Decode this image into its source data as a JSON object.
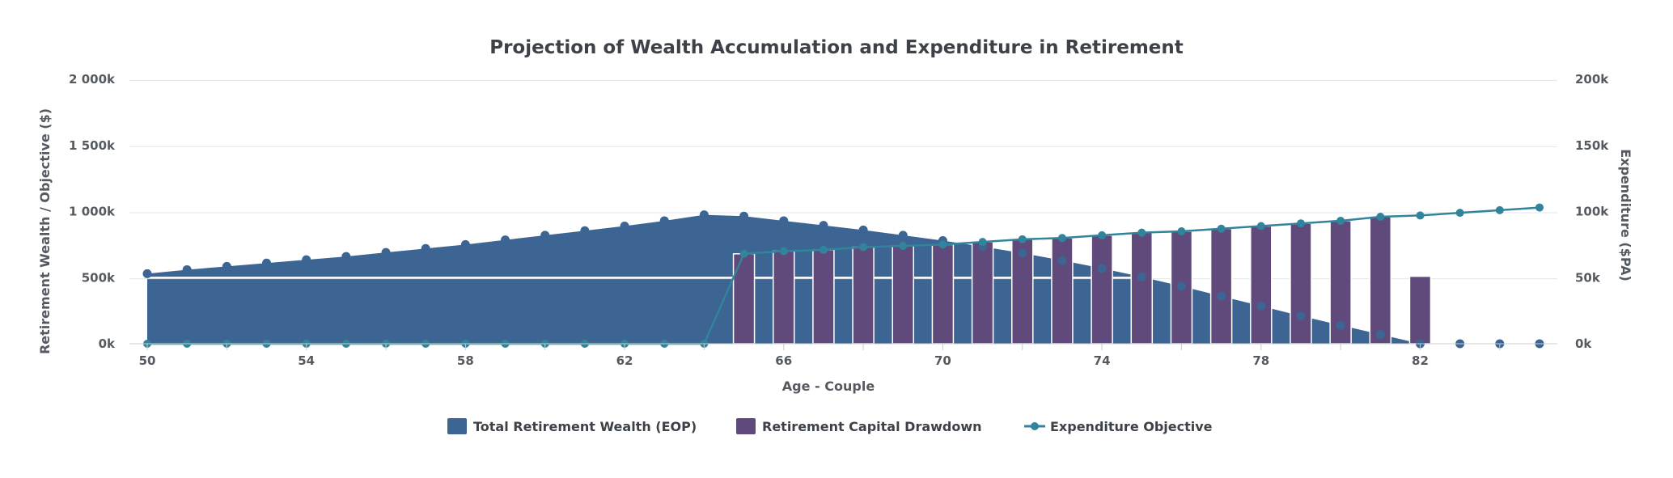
{
  "chart_data": {
    "type": "combo",
    "title": "Projection of Wealth Accumulation and Expenditure in Retirement",
    "xlabel": "Age - Couple",
    "ylabel_left": "Retirement Wealth / Objective ($)",
    "ylabel_right": "Expenditure ($PA)",
    "x": [
      50,
      51,
      52,
      53,
      54,
      55,
      56,
      57,
      58,
      59,
      60,
      61,
      62,
      63,
      64,
      65,
      66,
      67,
      68,
      69,
      70,
      71,
      72,
      73,
      74,
      75,
      76,
      77,
      78,
      79,
      80,
      81,
      82,
      83,
      84,
      85
    ],
    "x_tick_labels": [
      "50",
      "54",
      "58",
      "62",
      "66",
      "70",
      "74",
      "78",
      "82"
    ],
    "y_left_ticks": [
      "0k",
      "500k",
      "1 000k",
      "1 500k",
      "2 000k"
    ],
    "y_right_ticks": [
      "0k",
      "50k",
      "100k",
      "150k",
      "200k"
    ],
    "ylim_left": [
      0,
      2000000
    ],
    "ylim_right": [
      0,
      200000
    ],
    "grid": true,
    "legend_position": "bottom-center",
    "series": [
      {
        "name": "Total Retirement Wealth (EOP)",
        "kind": "area",
        "axis": "left",
        "color": "#3c6594",
        "values": [
          530000,
          560000,
          585000,
          610000,
          635000,
          660000,
          690000,
          720000,
          750000,
          785000,
          820000,
          855000,
          890000,
          930000,
          975000,
          965000,
          930000,
          895000,
          860000,
          820000,
          780000,
          735000,
          685000,
          630000,
          570000,
          505000,
          435000,
          360000,
          285000,
          210000,
          140000,
          70000,
          0,
          0,
          0,
          0
        ]
      },
      {
        "name": "Retirement Capital Drawdown",
        "kind": "bar",
        "axis": "right",
        "color": "#604a7b",
        "values": [
          null,
          null,
          null,
          null,
          null,
          null,
          null,
          null,
          null,
          null,
          null,
          null,
          null,
          null,
          null,
          68000,
          70000,
          71000,
          73000,
          74000,
          75000,
          77000,
          79000,
          80000,
          82000,
          84000,
          85000,
          87000,
          89000,
          91000,
          93000,
          96000,
          51000,
          null,
          null,
          null
        ]
      },
      {
        "name": "Expenditure Objective",
        "kind": "line",
        "axis": "right",
        "color": "#31849b",
        "values": [
          0,
          0,
          0,
          0,
          0,
          0,
          0,
          0,
          0,
          0,
          0,
          0,
          0,
          0,
          0,
          68000,
          70000,
          71000,
          73000,
          74000,
          75000,
          77000,
          79000,
          80000,
          82000,
          84000,
          85000,
          87000,
          89000,
          91000,
          93000,
          96000,
          97000,
          99000,
          101000,
          103000
        ]
      }
    ]
  },
  "colors": {
    "wealth_area": "#3c6594",
    "drawdown_bar": "#604a7b",
    "objective_line": "#31849b",
    "gridline": "#ffffff",
    "text": "#555a61"
  }
}
